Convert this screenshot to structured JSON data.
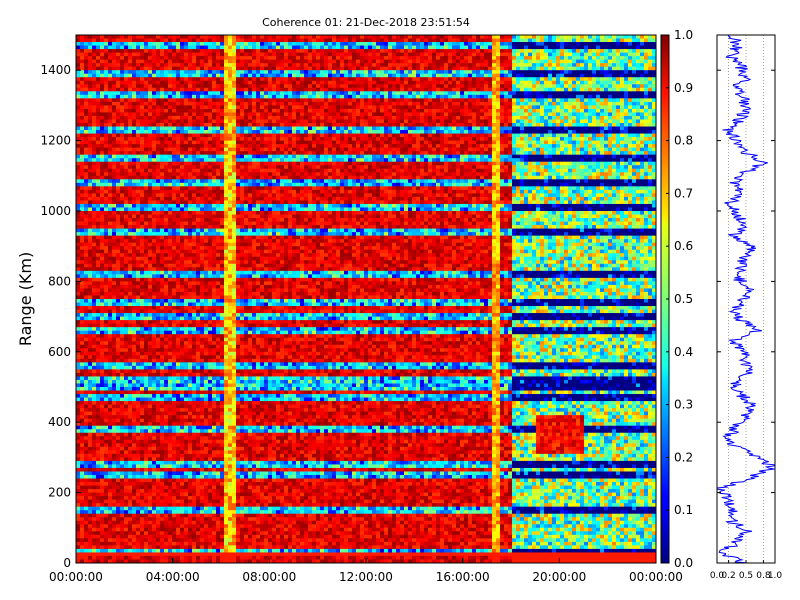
{
  "chart_data": [
    {
      "type": "heatmap",
      "title": "Coherence 01: 21-Dec-2018 23:51:54",
      "xlabel": "",
      "ylabel": "Range (Km)",
      "xlim": [
        "00:00:00",
        "24:00:00"
      ],
      "ylim": [
        0,
        1500
      ],
      "x_ticks": [
        "00:00:00",
        "04:00:00",
        "08:00:00",
        "12:00:00",
        "16:00:00",
        "20:00:00",
        "00:00:00"
      ],
      "y_ticks": [
        "0",
        "200",
        "400",
        "600",
        "800",
        "1000",
        "1200",
        "1400"
      ],
      "colormap": "jet",
      "value_range": [
        0.0,
        1.0
      ],
      "colorbar_ticks": [
        "0.0",
        "0.1",
        "0.2",
        "0.3",
        "0.4",
        "0.5",
        "0.6",
        "0.7",
        "0.8",
        "0.9",
        "1.0"
      ],
      "observations": {
        "dominant_value_hours_00_to_18": 0.9,
        "dominant_value_hours_18_to_24": 0.5,
        "vertical_low_coherence_band_hours": [
          6.1,
          6.6
        ],
        "vertical_gap_hour": 17.4,
        "low_coherence_rows_km": [
          30,
          150,
          250,
          280,
          380,
          470,
          500,
          520,
          560,
          660,
          700,
          740,
          820,
          940,
          1010,
          1080,
          1150,
          1230,
          1330,
          1390,
          1470
        ],
        "high_coherence_blob": {
          "hours": [
            19.0,
            21.0
          ],
          "range_km": [
            310,
            420
          ],
          "value": 0.95
        }
      }
    },
    {
      "type": "line",
      "title": "",
      "xlabel": "",
      "ylabel": "",
      "xlim": [
        0.0,
        1.0
      ],
      "ylim": [
        0,
        1500
      ],
      "x_ticks": [
        "0.0",
        "0.2",
        "0.5",
        "0.8",
        "1.0"
      ],
      "grid": true,
      "color": "#0000ff",
      "profile": {
        "range_km": [
          0,
          30,
          60,
          90,
          120,
          150,
          180,
          210,
          240,
          270,
          300,
          330,
          360,
          390,
          420,
          450,
          480,
          510,
          540,
          570,
          600,
          630,
          660,
          690,
          720,
          750,
          780,
          810,
          840,
          870,
          900,
          930,
          960,
          990,
          1020,
          1050,
          1080,
          1110,
          1140,
          1170,
          1200,
          1230,
          1260,
          1290,
          1320,
          1350,
          1380,
          1410,
          1440,
          1470,
          1500
        ],
        "values": [
          0.45,
          0.1,
          0.35,
          0.5,
          0.25,
          0.3,
          0.2,
          0.05,
          0.55,
          0.95,
          0.75,
          0.3,
          0.2,
          0.35,
          0.5,
          0.6,
          0.4,
          0.3,
          0.55,
          0.5,
          0.45,
          0.25,
          0.7,
          0.4,
          0.3,
          0.45,
          0.55,
          0.35,
          0.4,
          0.5,
          0.6,
          0.3,
          0.45,
          0.35,
          0.2,
          0.4,
          0.3,
          0.5,
          0.8,
          0.45,
          0.35,
          0.2,
          0.4,
          0.5,
          0.45,
          0.3,
          0.5,
          0.4,
          0.25,
          0.35,
          0.3
        ]
      }
    }
  ]
}
